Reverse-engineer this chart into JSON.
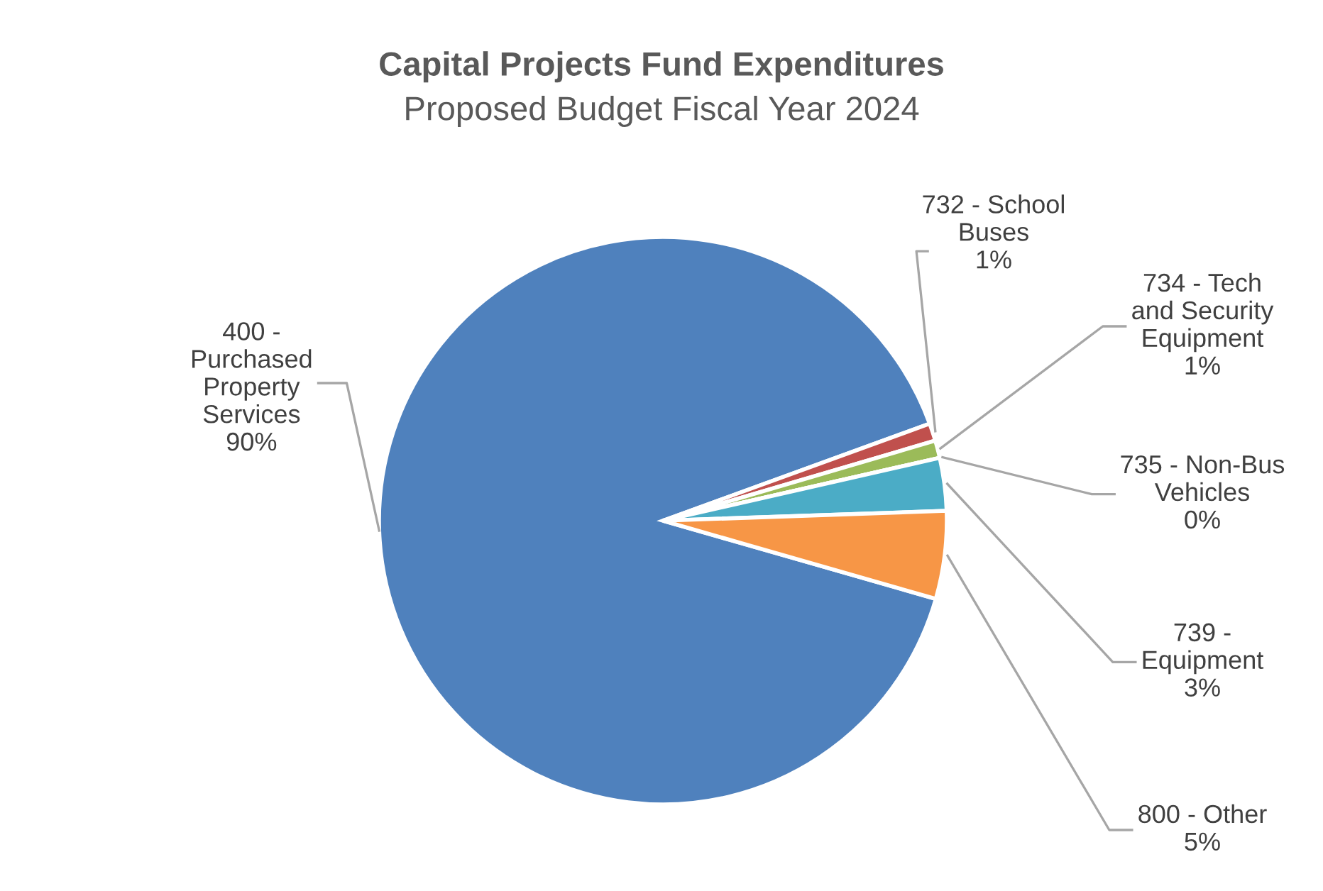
{
  "chart_data": {
    "type": "pie",
    "title": "Capital Projects Fund Expenditures",
    "subtitle": "Proposed Budget Fiscal Year 2024",
    "categories": [
      "400 - Purchased Property Services",
      "732 - School Buses",
      "734 - Tech and Security Equipment",
      "735 - Non-Bus Vehicles",
      "739 - Equipment",
      "800 - Other"
    ],
    "values": [
      90,
      1,
      1,
      0,
      3,
      5
    ],
    "value_labels": [
      "90%",
      "1%",
      "1%",
      "0%",
      "3%",
      "5%"
    ],
    "colors": [
      "#4f81bd",
      "#c0504d",
      "#9bbb59",
      "#8064a2",
      "#4bacc6",
      "#f79646"
    ],
    "legend": false
  }
}
